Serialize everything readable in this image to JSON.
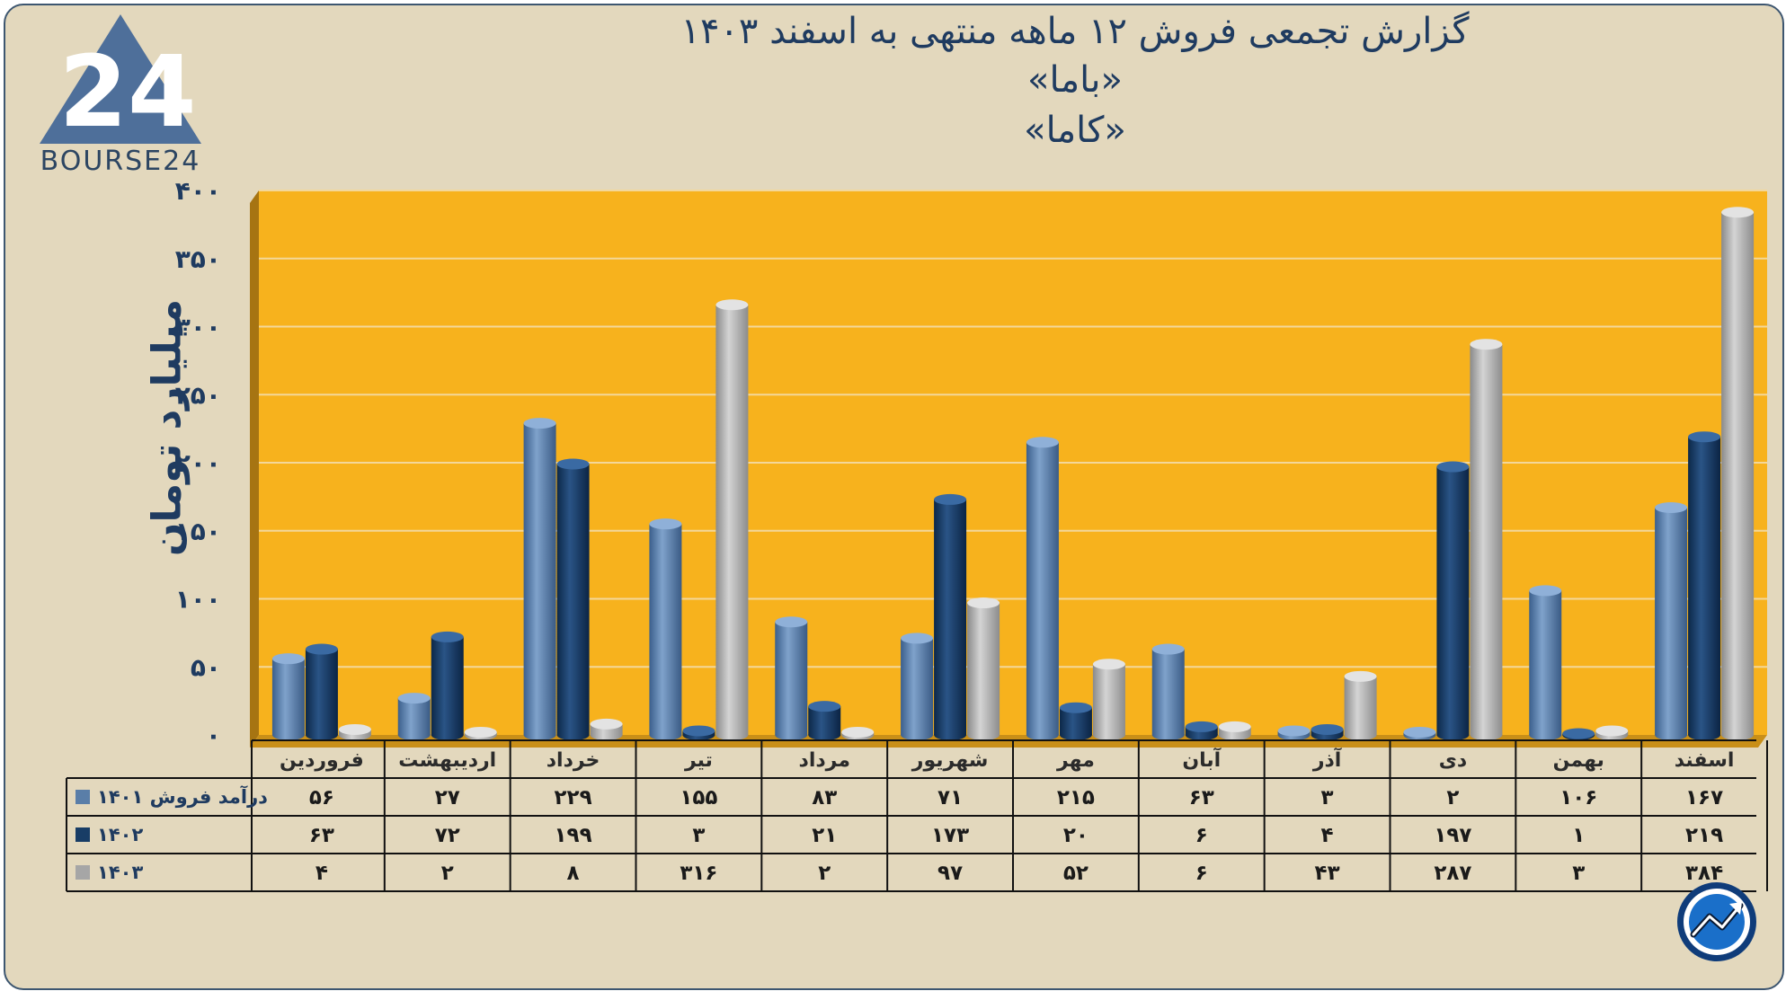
{
  "header": {
    "title_line1": "گزارش تجمعی فروش ۱۲ ماهه منتهی به اسفند ۱۴۰۳",
    "title_line2": "«باما»",
    "title_line3": "«کاما»"
  },
  "logo": {
    "text": "BOURSE24",
    "icon": "bourse24-logo-icon"
  },
  "corner_icon": "trend-arrow-icon",
  "colors": {
    "background": "#e3d8bd",
    "plot_area": "#f7b21d",
    "series_1401": "#5a7ea8",
    "series_1402": "#183d66",
    "series_1403": "#a6a6a6",
    "text": "#1f3b60"
  },
  "chart_data": {
    "type": "bar",
    "title": "گزارش تجمعی فروش ۱۲ ماهه منتهی به اسفند ۱۴۰۳",
    "ylabel": "میلیارد تومان",
    "ylim": [
      0,
      400
    ],
    "yticks": [
      "۰",
      "۵۰",
      "۱۰۰",
      "۱۵۰",
      "۲۰۰",
      "۲۵۰",
      "۳۰۰",
      "۳۵۰",
      "۴۰۰"
    ],
    "grid": true,
    "categories": [
      "فروردین",
      "اردیبهشت",
      "خرداد",
      "تیر",
      "مرداد",
      "شهریور",
      "مهر",
      "آبان",
      "آذر",
      "دی",
      "بهمن",
      "اسفند"
    ],
    "series": [
      {
        "name": "درآمد فروش ۱۴۰۱",
        "values": [
          56,
          27,
          229,
          155,
          83,
          71,
          215,
          63,
          3,
          2,
          106,
          167
        ],
        "labels": [
          "۵۶",
          "۲۷",
          "۲۲۹",
          "۱۵۵",
          "۸۳",
          "۷۱",
          "۲۱۵",
          "۶۳",
          "۳",
          "۲",
          "۱۰۶",
          "۱۶۷"
        ]
      },
      {
        "name": "۱۴۰۲",
        "values": [
          63,
          72,
          199,
          3,
          21,
          173,
          20,
          6,
          4,
          197,
          1,
          219
        ],
        "labels": [
          "۶۳",
          "۷۲",
          "۱۹۹",
          "۳",
          "۲۱",
          "۱۷۳",
          "۲۰",
          "۶",
          "۴",
          "۱۹۷",
          "۱",
          "۲۱۹"
        ]
      },
      {
        "name": "۱۴۰۳",
        "values": [
          4,
          2,
          8,
          316,
          2,
          97,
          52,
          6,
          43,
          287,
          3,
          384
        ],
        "labels": [
          "۴",
          "۲",
          "۸",
          "۳۱۶",
          "۲",
          "۹۷",
          "۵۲",
          "۶",
          "۴۳",
          "۲۸۷",
          "۳",
          "۳۸۴"
        ]
      }
    ]
  }
}
